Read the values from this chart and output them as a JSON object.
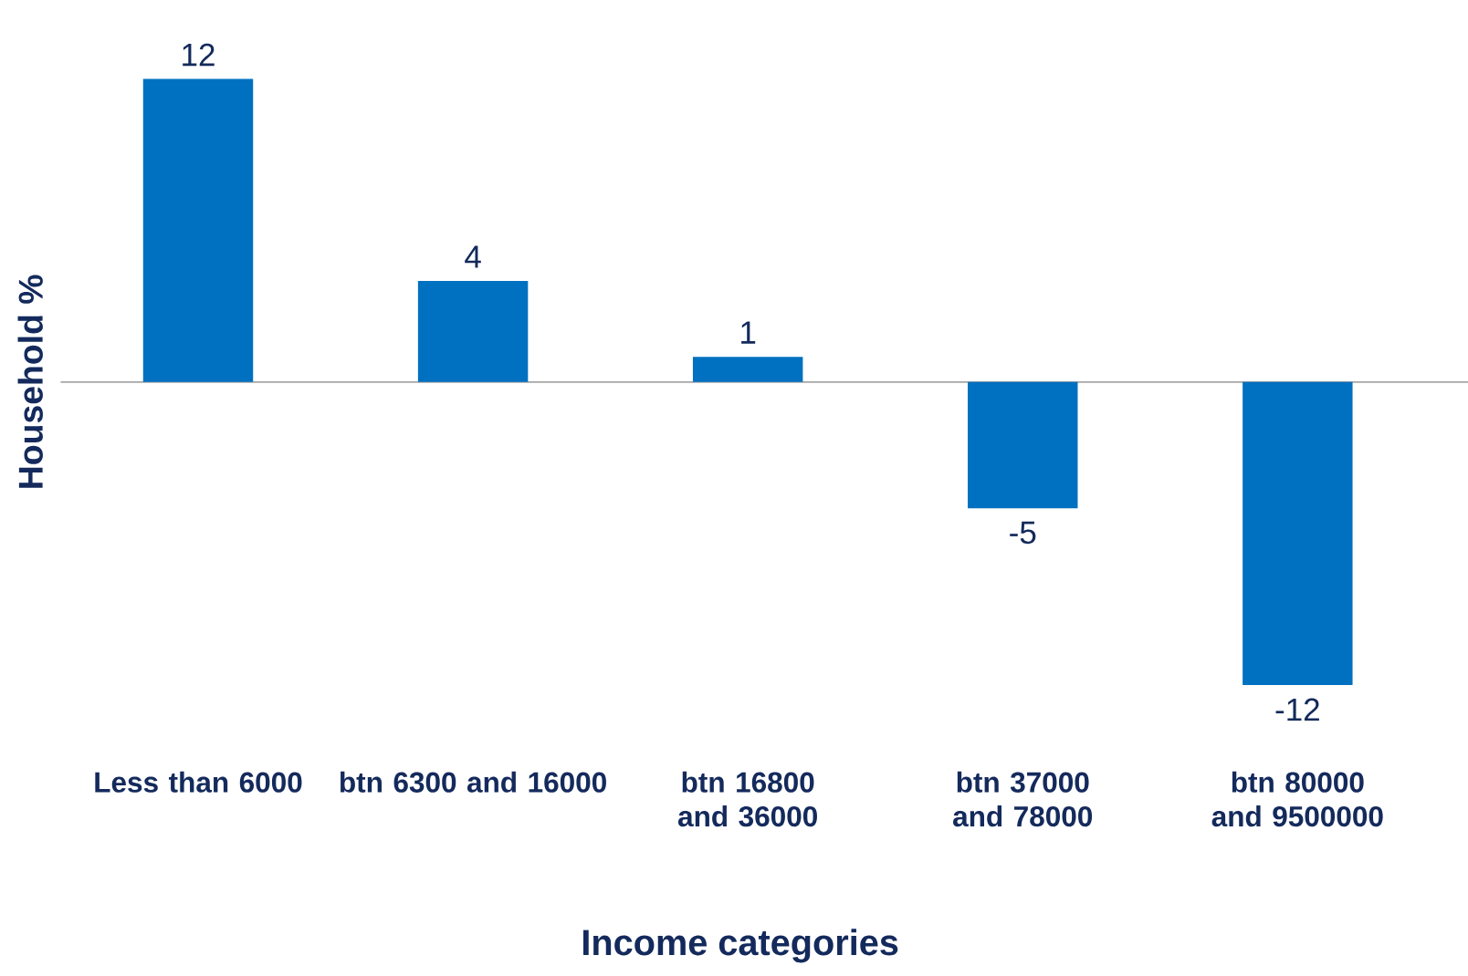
{
  "chart_data": {
    "type": "bar",
    "xlabel": "Income categories",
    "ylabel": "Household %",
    "categories": [
      "Less than 6000",
      "btn 6300 and 16000",
      "btn 16800 and 36000",
      "btn 37000 and 78000",
      "btn 80000 and 9500000"
    ],
    "values": [
      12,
      4,
      1,
      -5,
      -12
    ],
    "color": "#0070c0",
    "data_labels": true
  }
}
